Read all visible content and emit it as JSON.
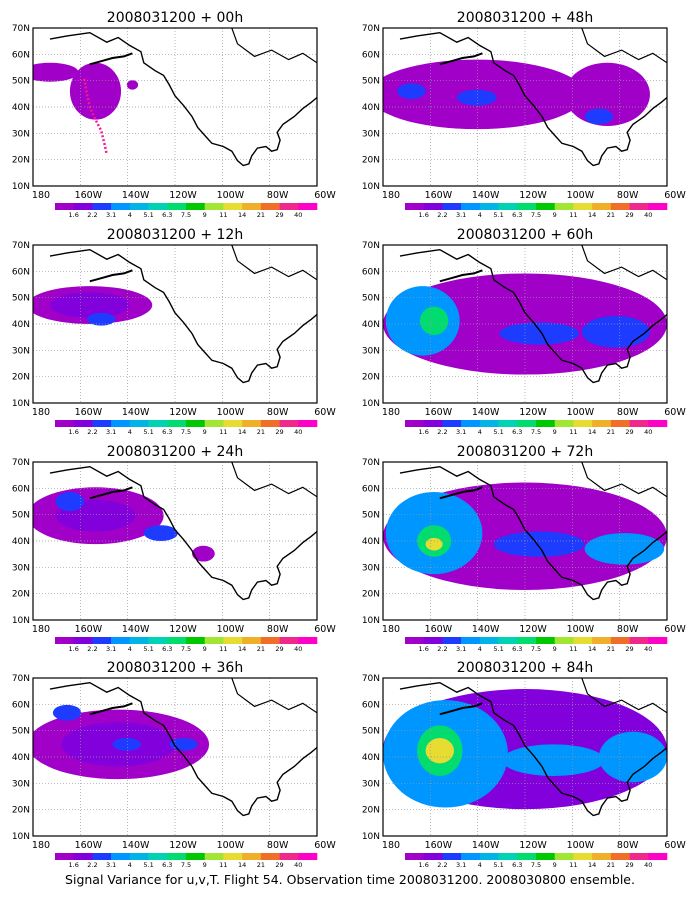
{
  "caption": "Signal Variance for u,v,T. Flight 54. Observation time 2008031200. 2008030800 ensemble.",
  "lat_labels": [
    "70N",
    "60N",
    "50N",
    "40N",
    "30N",
    "20N",
    "10N"
  ],
  "lon_labels": [
    "180",
    "160W",
    "140W",
    "120W",
    "100W",
    "80W",
    "60W"
  ],
  "colorbar": {
    "labels": [
      "1.6",
      "2.2",
      "3.1",
      "4",
      "5.1",
      "6.3",
      "7.5",
      "9",
      "11",
      "14",
      "21",
      "29",
      "40"
    ],
    "colors": [
      "#a000c8",
      "#8200dc",
      "#1e3cff",
      "#0096ff",
      "#00b4e6",
      "#00d2b4",
      "#00dc6e",
      "#00c800",
      "#a0e632",
      "#e6dc32",
      "#f0af28",
      "#f06e28",
      "#f0288c",
      "#ff00c8"
    ]
  },
  "panels": [
    {
      "title": "2008031200 + 00h"
    },
    {
      "title": "2008031200 + 48h"
    },
    {
      "title": "2008031200 + 12h"
    },
    {
      "title": "2008031200 + 60h"
    },
    {
      "title": "2008031200 + 24h"
    },
    {
      "title": "2008031200 + 72h"
    },
    {
      "title": "2008031200 + 36h"
    },
    {
      "title": "2008031200 + 84h"
    }
  ]
}
